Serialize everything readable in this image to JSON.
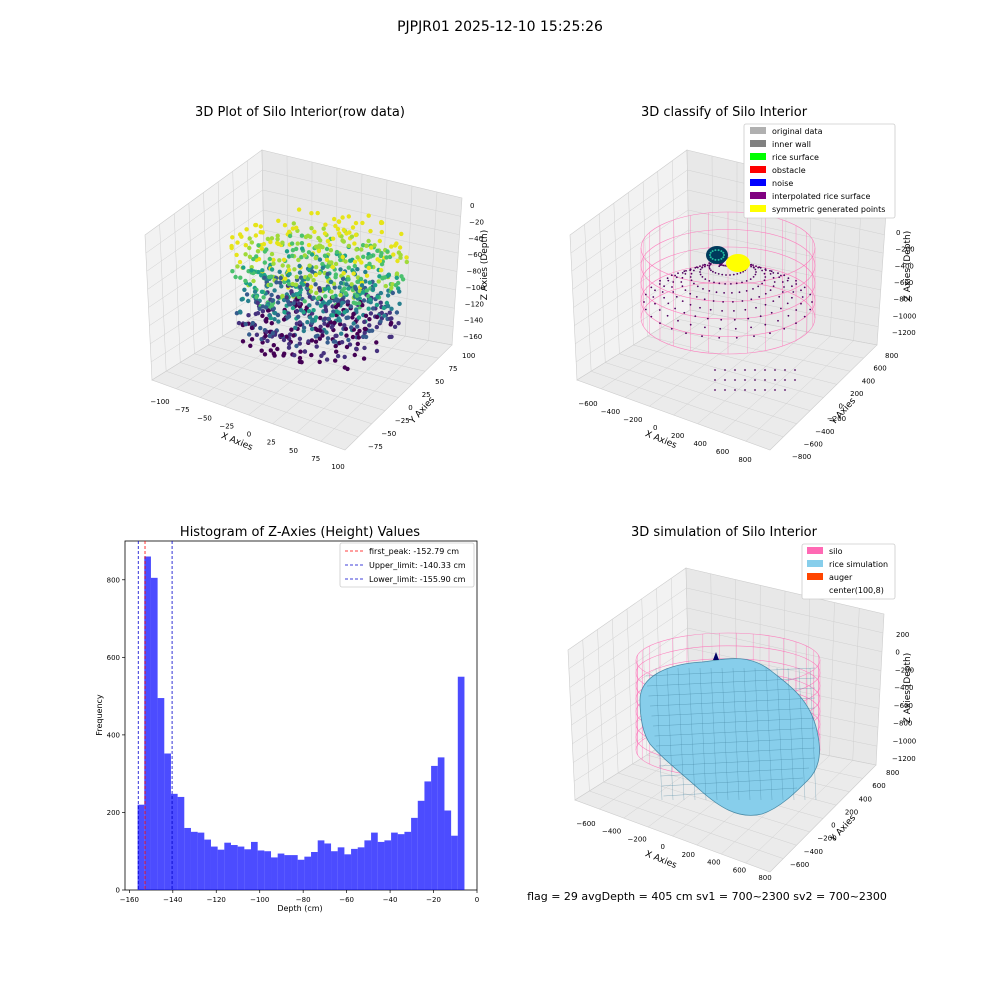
{
  "suptitle": "PJPJR01 2025-12-10 15:25:26",
  "footer": "flag = 29  avgDepth = 405 cm  sv1 = 700~2300  sv2 = 700~2300",
  "colors": {
    "hist": "#0000ff",
    "silo": "#ff69b4",
    "rice": "#87ceeb",
    "red_line": "#ff0000",
    "blue_line": "#0000cd"
  },
  "plot3d_raw": {
    "title": "3D Plot of Silo Interior(row data)",
    "xlabel": "X Axies",
    "ylabel": "Y Axies",
    "zlabel": "Z Axies (Depth)",
    "xticks": [
      "−100",
      "−75",
      "−50",
      "−25",
      "0",
      "25",
      "50",
      "75",
      "100"
    ],
    "yticks": [
      "−75",
      "−50",
      "−25",
      "0",
      "25",
      "50",
      "75",
      "100"
    ],
    "zticks": [
      "0",
      "−20",
      "−40",
      "−60",
      "−80",
      "−100",
      "−120",
      "−140",
      "−160"
    ]
  },
  "plot3d_classify": {
    "title": "3D classify of Silo Interior",
    "xlabel": "X Axies",
    "ylabel": "Y Axies",
    "zlabel": "Z Axies (Depth)",
    "xticks": [
      "−600",
      "−400",
      "−200",
      "0",
      "200",
      "400",
      "600",
      "800"
    ],
    "yticks": [
      "−800",
      "−600",
      "−400",
      "−200",
      "0",
      "200",
      "400",
      "600",
      "800"
    ],
    "zticks": [
      "0",
      "−200",
      "−400",
      "−600",
      "−800",
      "−1000",
      "−1200"
    ],
    "legend": [
      {
        "label": "original data",
        "color": "#b0b0b0"
      },
      {
        "label": "inner wall",
        "color": "#808080"
      },
      {
        "label": "rice surface",
        "color": "#00ff00"
      },
      {
        "label": "obstacle",
        "color": "#ff0000"
      },
      {
        "label": "noise",
        "color": "#0000ff"
      },
      {
        "label": "interpolated rice surface",
        "color": "#800080"
      },
      {
        "label": "symmetric generated points",
        "color": "#ffff00"
      }
    ]
  },
  "plot3d_sim": {
    "title": "3D simulation of Silo Interior",
    "xlabel": "X Axies",
    "ylabel": "Y Axies",
    "zlabel": "Z Axies (Depth)",
    "xticks": [
      "−600",
      "−400",
      "−200",
      "0",
      "200",
      "400",
      "600",
      "800"
    ],
    "yticks": [
      "−600",
      "−400",
      "−200",
      "0",
      "200",
      "400",
      "600",
      "800"
    ],
    "zticks": [
      "200",
      "0",
      "−200",
      "−400",
      "−600",
      "−800",
      "−1000",
      "−1200"
    ],
    "legend": [
      {
        "label": "silo",
        "color": "#ff69b4"
      },
      {
        "label": "rice simulation",
        "color": "#87ceeb"
      },
      {
        "label": "auger",
        "color": "#ff4500"
      },
      {
        "label": "center(100,8)",
        "color": "#ffffff"
      }
    ]
  },
  "chart_data": {
    "type": "bar",
    "title": "Histogram of Z-Axies (Height) Values",
    "xlabel": "Depth (cm)",
    "ylabel": "Frequency",
    "xlim": [
      -162,
      0
    ],
    "ylim": [
      0,
      900
    ],
    "bin_start": -156.2,
    "bin_width": 3.07,
    "values": [
      220,
      860,
      805,
      495,
      352,
      248,
      240,
      160,
      150,
      148,
      130,
      112,
      104,
      122,
      116,
      112,
      105,
      124,
      102,
      100,
      84,
      94,
      90,
      90,
      78,
      86,
      98,
      128,
      120,
      100,
      110,
      92,
      106,
      110,
      128,
      148,
      124,
      128,
      148,
      144,
      150,
      186,
      230,
      280,
      320,
      342,
      205,
      140,
      550
    ],
    "xticks": [
      -160,
      -140,
      -120,
      -100,
      -80,
      -60,
      -40,
      -20,
      0
    ],
    "xtick_labels": [
      "−160",
      "−140",
      "−120",
      "−100",
      "−80",
      "−60",
      "−40",
      "−20",
      "0"
    ],
    "yticks": [
      0,
      200,
      400,
      600,
      800
    ],
    "ytick_labels": [
      "0",
      "200",
      "400",
      "600",
      "800"
    ],
    "vlines": [
      {
        "label": "first_peak: -152.79 cm",
        "x": -152.79,
        "color": "#ff0000"
      },
      {
        "label": "Upper_limit: -140.33 cm",
        "x": -140.33,
        "color": "#0000cd"
      },
      {
        "label": "Lower_limit: -155.90 cm",
        "x": -155.9,
        "color": "#0000cd"
      }
    ],
    "legend_position": "top-right"
  }
}
